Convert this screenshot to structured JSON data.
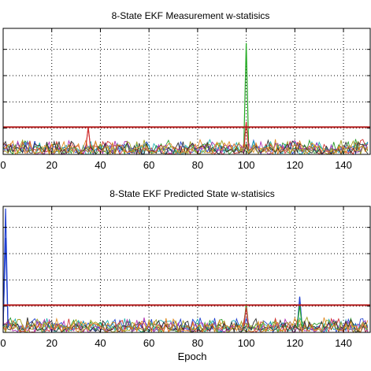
{
  "chart_data": [
    {
      "type": "line",
      "title": "8-State EKF Measurement w-statisics",
      "xlabel": "",
      "ylabel": "",
      "xlim": [
        0,
        150
      ],
      "ylim": [
        0,
        12
      ],
      "xticks": [
        0,
        20,
        40,
        60,
        80,
        100,
        120,
        140
      ],
      "yticks": [
        0,
        2.5,
        5,
        7.5,
        10
      ],
      "grid": true,
      "threshold": {
        "value": 2.6,
        "color": "#b31a1a"
      },
      "series_colors": [
        "#1f3fd0",
        "#2a9a2a",
        "#d03030",
        "#20b0b0",
        "#b030b0",
        "#a0a020",
        "#303030",
        "#e08a20"
      ],
      "spikes": [
        {
          "x": 100,
          "y": 10.6,
          "color": "#1fa81f"
        },
        {
          "x": 100,
          "y": 3.1,
          "color": "#d03030"
        },
        {
          "x": 35,
          "y": 2.6,
          "color": "#d03030"
        }
      ],
      "noise_level": 1.0,
      "epochs": 150
    },
    {
      "type": "line",
      "title": "8-State EKF Predicted State w-statisics",
      "xlabel": "Epoch",
      "ylabel": "",
      "xlim": [
        0,
        150
      ],
      "ylim": [
        0,
        12
      ],
      "xticks": [
        0,
        20,
        40,
        60,
        80,
        100,
        120,
        140
      ],
      "yticks": [
        0,
        2.5,
        5,
        7.5,
        10
      ],
      "grid": true,
      "threshold": {
        "value": 2.6,
        "color": "#b31a1a"
      },
      "series_colors": [
        "#1f3fd0",
        "#2a9a2a",
        "#d03030",
        "#20b0b0",
        "#b030b0",
        "#a0a020",
        "#303030",
        "#e08a20"
      ],
      "spikes": [
        {
          "x": 1,
          "y": 11.8,
          "color": "#1f3fd0"
        },
        {
          "x": 1,
          "y": 9.0,
          "color": "#1f3fd0"
        },
        {
          "x": 122,
          "y": 3.4,
          "color": "#1f3fd0"
        },
        {
          "x": 122,
          "y": 2.6,
          "color": "#1fa81f"
        },
        {
          "x": 100,
          "y": 2.7,
          "color": "#1fa81f"
        },
        {
          "x": 100,
          "y": 2.4,
          "color": "#d03030"
        }
      ],
      "noise_level": 1.0,
      "epochs": 150
    }
  ]
}
